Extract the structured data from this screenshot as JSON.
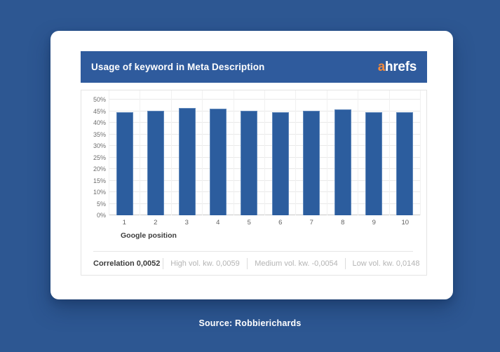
{
  "page": {
    "background_color": "#2d5792",
    "source_text": "Source: Robbierichards"
  },
  "header": {
    "title": "Usage of keyword in Meta Description",
    "logo": {
      "prefix": "a",
      "rest": "hrefs",
      "prefix_color": "#f28a3d",
      "rest_color": "#ffffff"
    }
  },
  "footer": {
    "correlation": "Correlation 0,0052",
    "high": "High vol. kw. 0,0059",
    "medium": "Medium vol. kw. -0,0054",
    "low": "Low vol. kw. 0,0148"
  },
  "chart_data": {
    "type": "bar",
    "title": "Usage of keyword in Meta Description",
    "categories": [
      "1",
      "2",
      "3",
      "4",
      "5",
      "6",
      "7",
      "8",
      "9",
      "10"
    ],
    "values": [
      44.4,
      45.3,
      46.3,
      46.0,
      45.3,
      44.7,
      45.1,
      45.9,
      44.4,
      44.7
    ],
    "xlabel": "Google position",
    "ylabel": "",
    "ylim": [
      0,
      50
    ],
    "ytick_step": 5,
    "ytick_labels": [
      "0%",
      "5%",
      "10%",
      "15%",
      "20%",
      "25%",
      "30%",
      "35%",
      "40%",
      "45%",
      "50%"
    ],
    "grid": true,
    "legend": null,
    "bar_color": "#2c5d9e",
    "bar_border_color": "#5f87ba"
  }
}
